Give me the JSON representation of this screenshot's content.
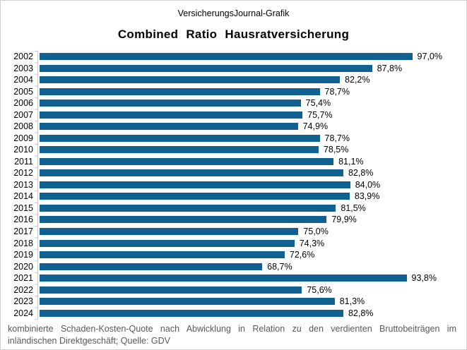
{
  "header": {
    "subtitle": "VersicherungsJournal-Grafik",
    "title": "Combined Ratio Hausratversicherung"
  },
  "chart_data": {
    "type": "bar",
    "orientation": "horizontal",
    "title": "Combined Ratio Hausratversicherung",
    "categories": [
      "2002",
      "2003",
      "2004",
      "2005",
      "2006",
      "2007",
      "2008",
      "2009",
      "2010",
      "2011",
      "2012",
      "2013",
      "2014",
      "2015",
      "2016",
      "2017",
      "2018",
      "2019",
      "2020",
      "2021",
      "2022",
      "2023",
      "2024"
    ],
    "values": [
      97.0,
      87.8,
      82.2,
      78.7,
      75.4,
      75.7,
      74.9,
      78.7,
      78.5,
      81.1,
      82.8,
      84.0,
      83.9,
      81.5,
      79.9,
      75.0,
      74.3,
      72.6,
      68.7,
      93.8,
      75.6,
      81.3,
      82.8
    ],
    "value_labels": [
      "97,0%",
      "87,8%",
      "82,2%",
      "78,7%",
      "75,4%",
      "75,7%",
      "74,9%",
      "78,7%",
      "78,5%",
      "81,1%",
      "82,8%",
      "84,0%",
      "83,9%",
      "81,5%",
      "79,9%",
      "75,0%",
      "74,3%",
      "72,6%",
      "68,7%",
      "93,8%",
      "75,6%",
      "81,3%",
      "82,8%"
    ],
    "xlabel": "",
    "ylabel": "",
    "xlim": [
      30,
      100
    ],
    "grid": false,
    "legend": false
  },
  "footnote": {
    "line1": "kombinierte Schaden-Kosten-Quote nach Abwicklung in Relation zu den verdienten Bruttobeiträgen im",
    "line2": "inländischen Direktgeschäft; Quelle: GDV"
  },
  "colors": {
    "bar": "#0e6190",
    "axis": "#c8c8c8",
    "footnote_text": "#595959",
    "border": "#cfcfcf"
  }
}
